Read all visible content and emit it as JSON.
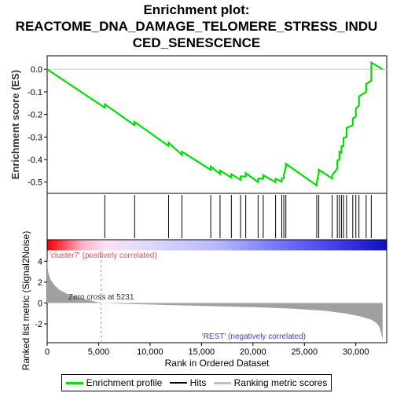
{
  "chart_data": {
    "type": "line",
    "title_lines": [
      "Enrichment plot:",
      "REACTOME_DNA_DAMAGE_TELOMERE_STRESS_INDU",
      "CED_SENESCENCE"
    ],
    "xlabel": "Rank in Ordered Dataset",
    "ylabel_top": "Enrichment score (ES)",
    "ylabel_bottom": "Ranked list metric (Signal2Noise)",
    "xlim": [
      0,
      33000
    ],
    "x_ticks": [
      0,
      5000,
      10000,
      15000,
      20000,
      25000,
      30000
    ],
    "x_tick_labels": [
      "0",
      "5,000",
      "10,000",
      "15,000",
      "20,000",
      "25,000",
      "30,000"
    ],
    "es_ylim": [
      -0.55,
      0.06
    ],
    "es_ticks": [
      0.0,
      -0.1,
      -0.2,
      -0.3,
      -0.4,
      -0.5
    ],
    "es_tick_labels": [
      "0.0",
      "-0.1",
      "-0.2",
      "-0.3",
      "-0.4",
      "-0.5"
    ],
    "metric_ylim": [
      -3.8,
      5.0
    ],
    "metric_ticks": [
      4,
      2,
      0,
      -2
    ],
    "metric_tick_labels": [
      "4",
      "2",
      "0",
      "-2"
    ],
    "hits": [
      5600,
      8500,
      11800,
      13100,
      15900,
      16800,
      17900,
      18800,
      19300,
      20500,
      21000,
      22200,
      22800,
      23000,
      23200,
      26200,
      26400,
      27700,
      28200,
      28400,
      28600,
      28800,
      29100,
      29700,
      30000,
      30300,
      31000,
      31500
    ],
    "enrichment_profile": {
      "x": [
        0,
        5600,
        5601,
        8500,
        8501,
        11800,
        11801,
        13100,
        13101,
        15900,
        15901,
        16800,
        16801,
        17900,
        17901,
        18800,
        18801,
        19300,
        19301,
        20500,
        20501,
        21000,
        21001,
        22200,
        22201,
        22800,
        22801,
        23000,
        23001,
        23200,
        23201,
        26200,
        26201,
        26400,
        26401,
        27700,
        27701,
        28200,
        28201,
        28400,
        28401,
        28600,
        28601,
        28800,
        28801,
        29100,
        29101,
        29700,
        29701,
        30000,
        30001,
        30300,
        30301,
        31000,
        31001,
        31500,
        31501,
        32600
      ],
      "y": [
        0.0,
        -0.17,
        -0.155,
        -0.248,
        -0.233,
        -0.34,
        -0.325,
        -0.38,
        -0.365,
        -0.446,
        -0.431,
        -0.464,
        -0.449,
        -0.48,
        -0.465,
        -0.49,
        -0.475,
        -0.475,
        -0.46,
        -0.5,
        -0.485,
        -0.485,
        -0.47,
        -0.5,
        -0.485,
        -0.498,
        -0.483,
        -0.483,
        -0.468,
        -0.434,
        -0.419,
        -0.515,
        -0.5,
        -0.46,
        -0.445,
        -0.484,
        -0.469,
        -0.44,
        -0.405,
        -0.4,
        -0.365,
        -0.37,
        -0.34,
        -0.34,
        -0.305,
        -0.3,
        -0.26,
        -0.248,
        -0.218,
        -0.21,
        -0.175,
        -0.16,
        -0.12,
        -0.1,
        -0.065,
        -0.05,
        0.03,
        0.0
      ]
    },
    "metric_profile": {
      "x": [
        0,
        100,
        300,
        700,
        1200,
        2000,
        3000,
        4000,
        5231,
        8000,
        12000,
        16000,
        20000,
        24000,
        27000,
        29000,
        30500,
        31500,
        32000,
        32300,
        32500,
        32600
      ],
      "y": [
        4.2,
        2.9,
        2.3,
        1.7,
        1.25,
        0.85,
        0.55,
        0.3,
        0.0,
        -0.1,
        -0.2,
        -0.3,
        -0.4,
        -0.55,
        -0.75,
        -1.0,
        -1.3,
        -1.6,
        -1.9,
        -2.3,
        -3.0,
        -3.6
      ]
    },
    "zero_cross_rank": 5231,
    "zero_cross_label": "Zero cross at 5231",
    "pos_label": "'cluster7' (positively correlated)",
    "neg_label": "'REST' (negatively correlated)",
    "legend": [
      {
        "label": "Enrichment profile",
        "color": "#00e000"
      },
      {
        "label": "Hits",
        "color": "#000000"
      },
      {
        "label": "Ranking metric scores",
        "color": "#c0c0c0"
      }
    ],
    "colors": {
      "profile": "#00e000",
      "metric_fill": "#a0a0a0",
      "pos_label": "#e05050",
      "neg_label": "#4040d0"
    }
  }
}
